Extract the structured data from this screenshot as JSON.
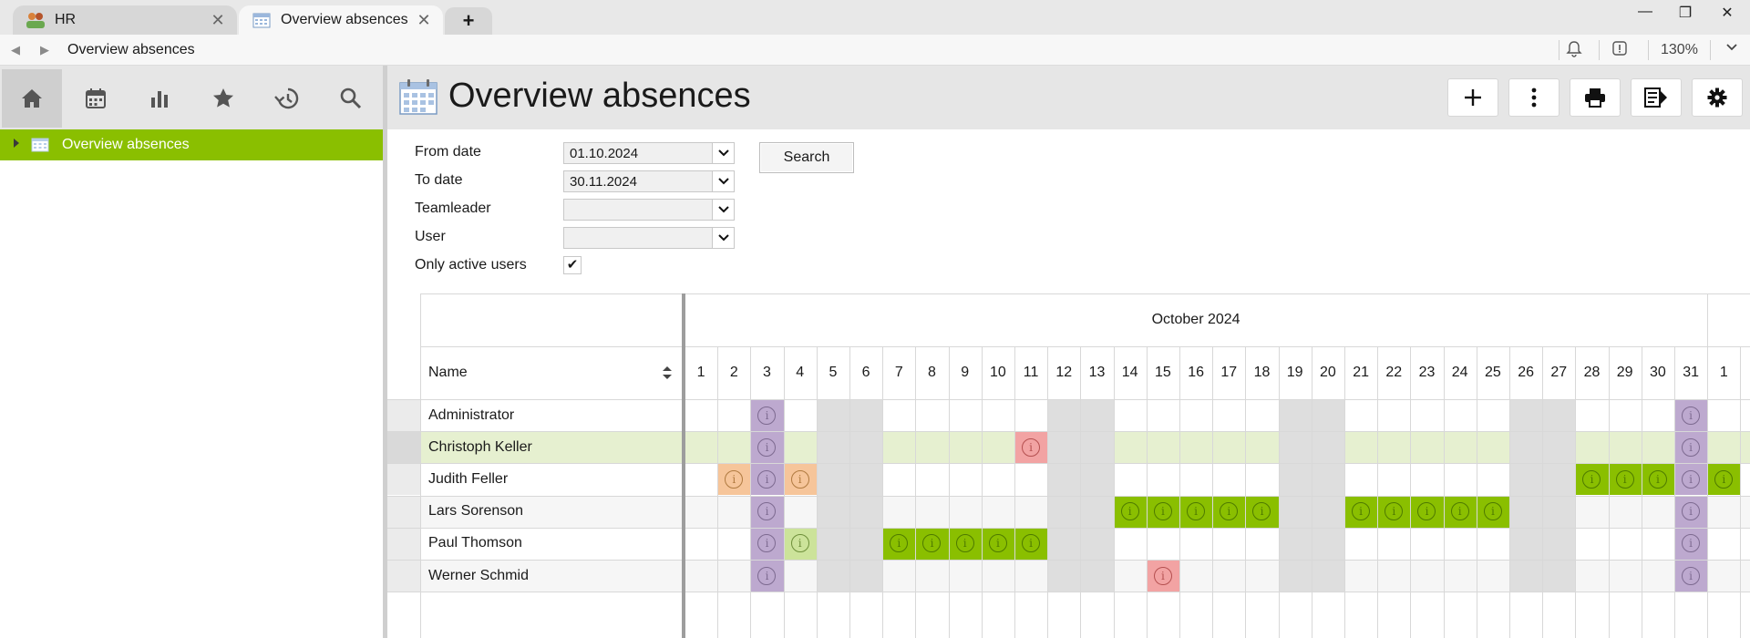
{
  "tabs": [
    {
      "label": "HR",
      "icon": "people-icon",
      "active": false
    },
    {
      "label": "Overview absences",
      "icon": "calendar-icon",
      "active": true
    }
  ],
  "address": {
    "path": "Overview absences",
    "zoom": "130%"
  },
  "sidebar": {
    "toolbar": [
      "home-icon",
      "calendar-icon",
      "chart-icon",
      "star-icon",
      "history-icon",
      "search-icon"
    ],
    "tree_item": "Overview absences"
  },
  "header": {
    "title": "Overview absences",
    "buttons": [
      "plus-icon",
      "more-icon",
      "print-icon",
      "export-icon",
      "settings-icon"
    ]
  },
  "filters": {
    "from_label": "From date",
    "from_value": "01.10.2024",
    "to_label": "To date",
    "to_value": "30.11.2024",
    "teamleader_label": "Teamleader",
    "teamleader_value": "",
    "user_label": "User",
    "user_value": "",
    "active_label": "Only active users",
    "active_checked": true,
    "search_label": "Search"
  },
  "grid": {
    "month": "October 2024",
    "name_header": "Name",
    "days": [
      "1",
      "2",
      "3",
      "4",
      "5",
      "6",
      "7",
      "8",
      "9",
      "10",
      "11",
      "12",
      "13",
      "14",
      "15",
      "16",
      "17",
      "18",
      "19",
      "20",
      "21",
      "22",
      "23",
      "24",
      "25",
      "26",
      "27",
      "28",
      "29",
      "30",
      "31",
      "1"
    ],
    "weekend_days": [
      5,
      6,
      12,
      13,
      19,
      20,
      26,
      27
    ],
    "colors": {
      "purple": "#bda9cf",
      "green": "#8abf00",
      "lightgreen": "#cce39a",
      "red": "#f2a3a3",
      "orange": "#f6c59a",
      "weekend": "#dedede",
      "highlight": "#e6f0d0"
    },
    "rows": [
      {
        "name": "Administrator",
        "highlight": false,
        "cells": {
          "3": "purple",
          "31": "purple"
        }
      },
      {
        "name": "Christoph Keller",
        "highlight": true,
        "cells": {
          "3": "purple",
          "11": "red",
          "31": "purple"
        }
      },
      {
        "name": "Judith Feller",
        "highlight": false,
        "cells": {
          "2": "orange",
          "3": "purple",
          "4": "orange",
          "28": "green",
          "29": "green",
          "30": "green",
          "31": "purple",
          "32": "green"
        }
      },
      {
        "name": "Lars Sorenson",
        "highlight": false,
        "cells": {
          "3": "purple",
          "14": "green",
          "15": "green",
          "16": "green",
          "17": "green",
          "18": "green",
          "21": "green",
          "22": "green",
          "23": "green",
          "24": "green",
          "25": "green",
          "31": "purple"
        }
      },
      {
        "name": "Paul Thomson",
        "highlight": false,
        "cells": {
          "3": "purple",
          "4": "lightgreen",
          "7": "green",
          "8": "green",
          "9": "green",
          "10": "green",
          "11": "green",
          "31": "purple"
        }
      },
      {
        "name": "Werner Schmid",
        "highlight": false,
        "cells": {
          "3": "purple",
          "15": "red",
          "31": "purple"
        }
      }
    ]
  }
}
